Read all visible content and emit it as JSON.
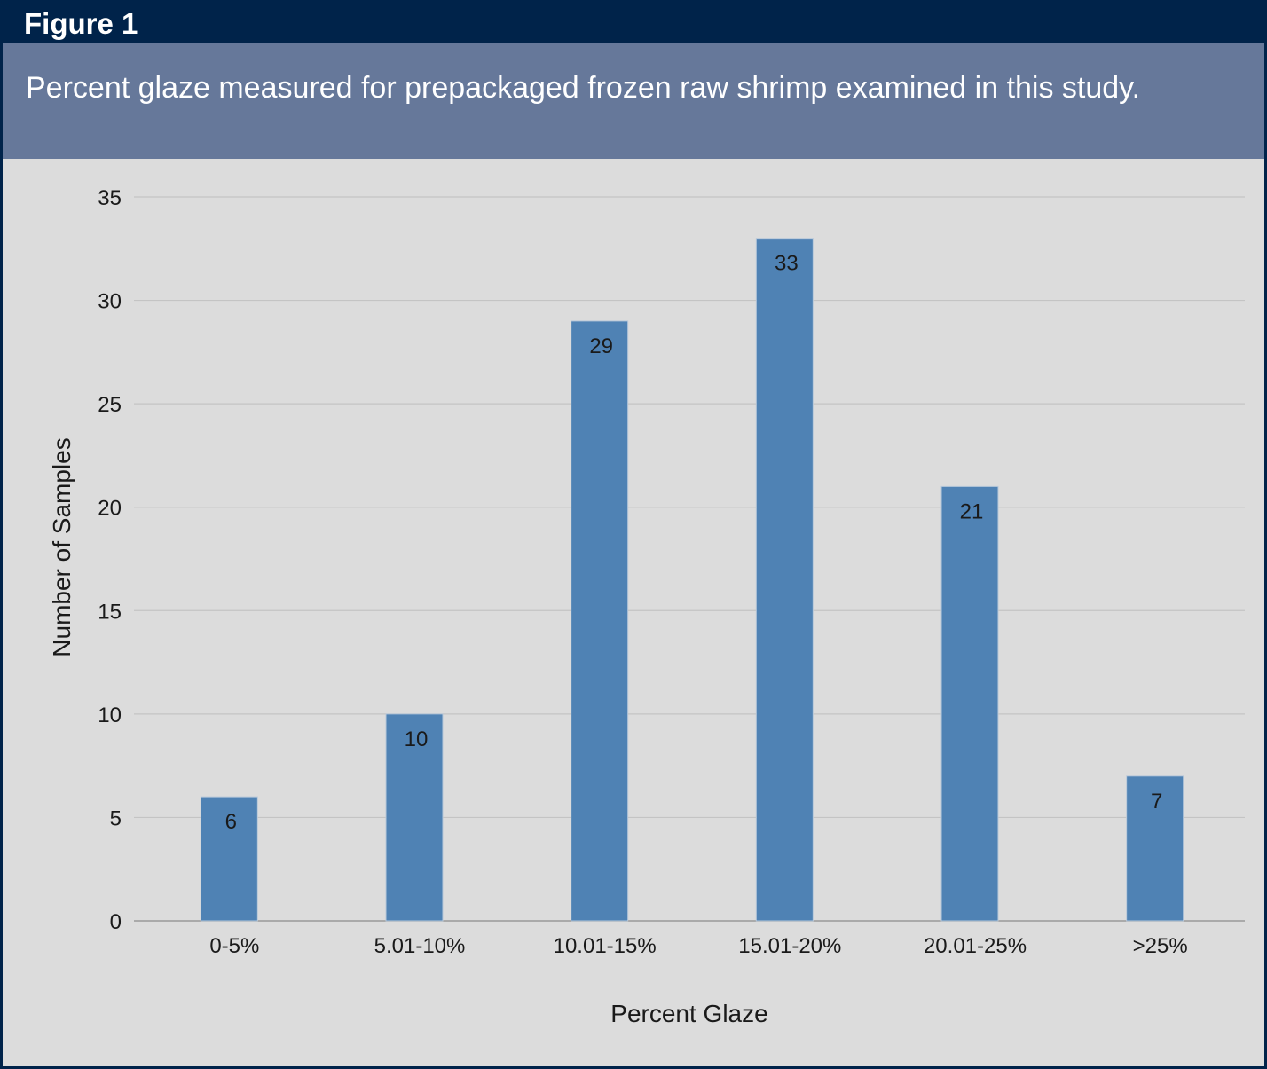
{
  "figure": {
    "label": "Figure 1",
    "caption": "Percent glaze measured for prepackaged frozen raw shrimp examined in this study."
  },
  "colors": {
    "header_bg": "#00234a",
    "caption_bg": "#66789a",
    "plot_bg": "#dcdcdc",
    "bar": "#4f82b4",
    "grid": "#c4c4c4"
  },
  "chart_data": {
    "type": "bar",
    "title": "",
    "xlabel": "Percent Glaze",
    "ylabel": "Number of Samples",
    "categories": [
      "0-5%",
      "5.01-10%",
      "10.01-15%",
      "15.01-20%",
      "20.01-25%",
      ">25%"
    ],
    "values": [
      6,
      10,
      29,
      33,
      21,
      7
    ],
    "data_labels": [
      "6",
      "10",
      "29",
      "33",
      "21",
      "7"
    ],
    "ylim": [
      0,
      35
    ],
    "yticks": [
      0,
      5,
      10,
      15,
      20,
      25,
      30,
      35
    ],
    "grid": true,
    "legend": "none"
  }
}
